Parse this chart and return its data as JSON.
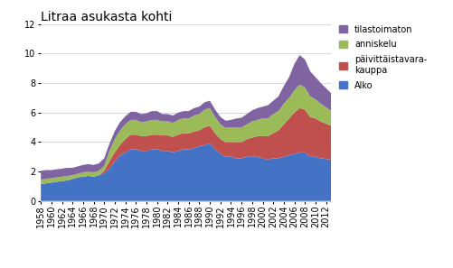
{
  "title": "Litraa asukasta kohti",
  "ylim": [
    0,
    12
  ],
  "yticks": [
    0,
    2,
    4,
    6,
    8,
    10,
    12
  ],
  "colors": {
    "Alko": "#4472c4",
    "paivittaistavarakauppa": "#c0504d",
    "anniskelu": "#9bbb59",
    "tilastoimaton": "#8064a2"
  },
  "years": [
    1958,
    1959,
    1960,
    1961,
    1962,
    1963,
    1964,
    1965,
    1966,
    1967,
    1968,
    1969,
    1970,
    1971,
    1972,
    1973,
    1974,
    1975,
    1976,
    1977,
    1978,
    1979,
    1980,
    1981,
    1982,
    1983,
    1984,
    1985,
    1986,
    1987,
    1988,
    1989,
    1990,
    1991,
    1992,
    1993,
    1994,
    1995,
    1996,
    1997,
    1998,
    1999,
    2000,
    2001,
    2002,
    2003,
    2004,
    2005,
    2006,
    2007,
    2008,
    2009,
    2010,
    2011,
    2012,
    2013
  ],
  "alko": [
    1.15,
    1.2,
    1.25,
    1.3,
    1.35,
    1.4,
    1.5,
    1.6,
    1.65,
    1.7,
    1.65,
    1.75,
    1.9,
    2.2,
    2.7,
    3.1,
    3.3,
    3.5,
    3.5,
    3.4,
    3.4,
    3.5,
    3.5,
    3.4,
    3.4,
    3.3,
    3.4,
    3.5,
    3.5,
    3.6,
    3.7,
    3.8,
    3.9,
    3.5,
    3.2,
    3.0,
    3.0,
    2.9,
    2.9,
    3.0,
    3.0,
    3.0,
    2.9,
    2.8,
    2.9,
    2.9,
    3.0,
    3.1,
    3.2,
    3.3,
    3.3,
    3.0,
    3.0,
    2.9,
    2.85,
    2.8
  ],
  "paivittais": [
    0.0,
    0.0,
    0.0,
    0.0,
    0.0,
    0.0,
    0.0,
    0.0,
    0.0,
    0.0,
    0.0,
    0.0,
    0.15,
    0.5,
    0.6,
    0.7,
    0.9,
    1.0,
    1.0,
    1.0,
    1.0,
    1.0,
    1.0,
    1.05,
    1.05,
    1.05,
    1.1,
    1.1,
    1.1,
    1.1,
    1.1,
    1.2,
    1.2,
    1.1,
    1.0,
    1.0,
    1.0,
    1.1,
    1.1,
    1.2,
    1.3,
    1.4,
    1.5,
    1.6,
    1.7,
    1.9,
    2.2,
    2.5,
    2.8,
    3.0,
    2.9,
    2.7,
    2.6,
    2.5,
    2.4,
    2.3
  ],
  "anniskelu": [
    0.3,
    0.3,
    0.3,
    0.3,
    0.3,
    0.3,
    0.25,
    0.25,
    0.3,
    0.3,
    0.3,
    0.3,
    0.35,
    0.7,
    0.9,
    1.0,
    1.0,
    1.0,
    1.0,
    0.95,
    1.0,
    1.0,
    1.0,
    0.95,
    0.95,
    0.95,
    1.0,
    1.0,
    1.0,
    1.1,
    1.1,
    1.2,
    1.2,
    1.1,
    1.0,
    0.95,
    1.0,
    1.0,
    1.0,
    1.0,
    1.1,
    1.1,
    1.2,
    1.2,
    1.3,
    1.3,
    1.4,
    1.4,
    1.5,
    1.6,
    1.5,
    1.4,
    1.3,
    1.2,
    1.1,
    1.0
  ],
  "tilastoimaton": [
    0.6,
    0.6,
    0.55,
    0.55,
    0.55,
    0.55,
    0.5,
    0.5,
    0.5,
    0.5,
    0.5,
    0.5,
    0.5,
    0.5,
    0.55,
    0.55,
    0.55,
    0.55,
    0.55,
    0.55,
    0.55,
    0.6,
    0.6,
    0.5,
    0.5,
    0.5,
    0.5,
    0.5,
    0.5,
    0.5,
    0.5,
    0.5,
    0.5,
    0.5,
    0.5,
    0.5,
    0.5,
    0.6,
    0.65,
    0.7,
    0.75,
    0.8,
    0.8,
    0.9,
    0.9,
    1.0,
    1.2,
    1.4,
    1.8,
    2.0,
    1.9,
    1.7,
    1.5,
    1.4,
    1.3,
    1.2
  ],
  "background_color": "#ffffff",
  "grid_color": "#d0d0d0",
  "title_fontsize": 10,
  "tick_fontsize": 7
}
